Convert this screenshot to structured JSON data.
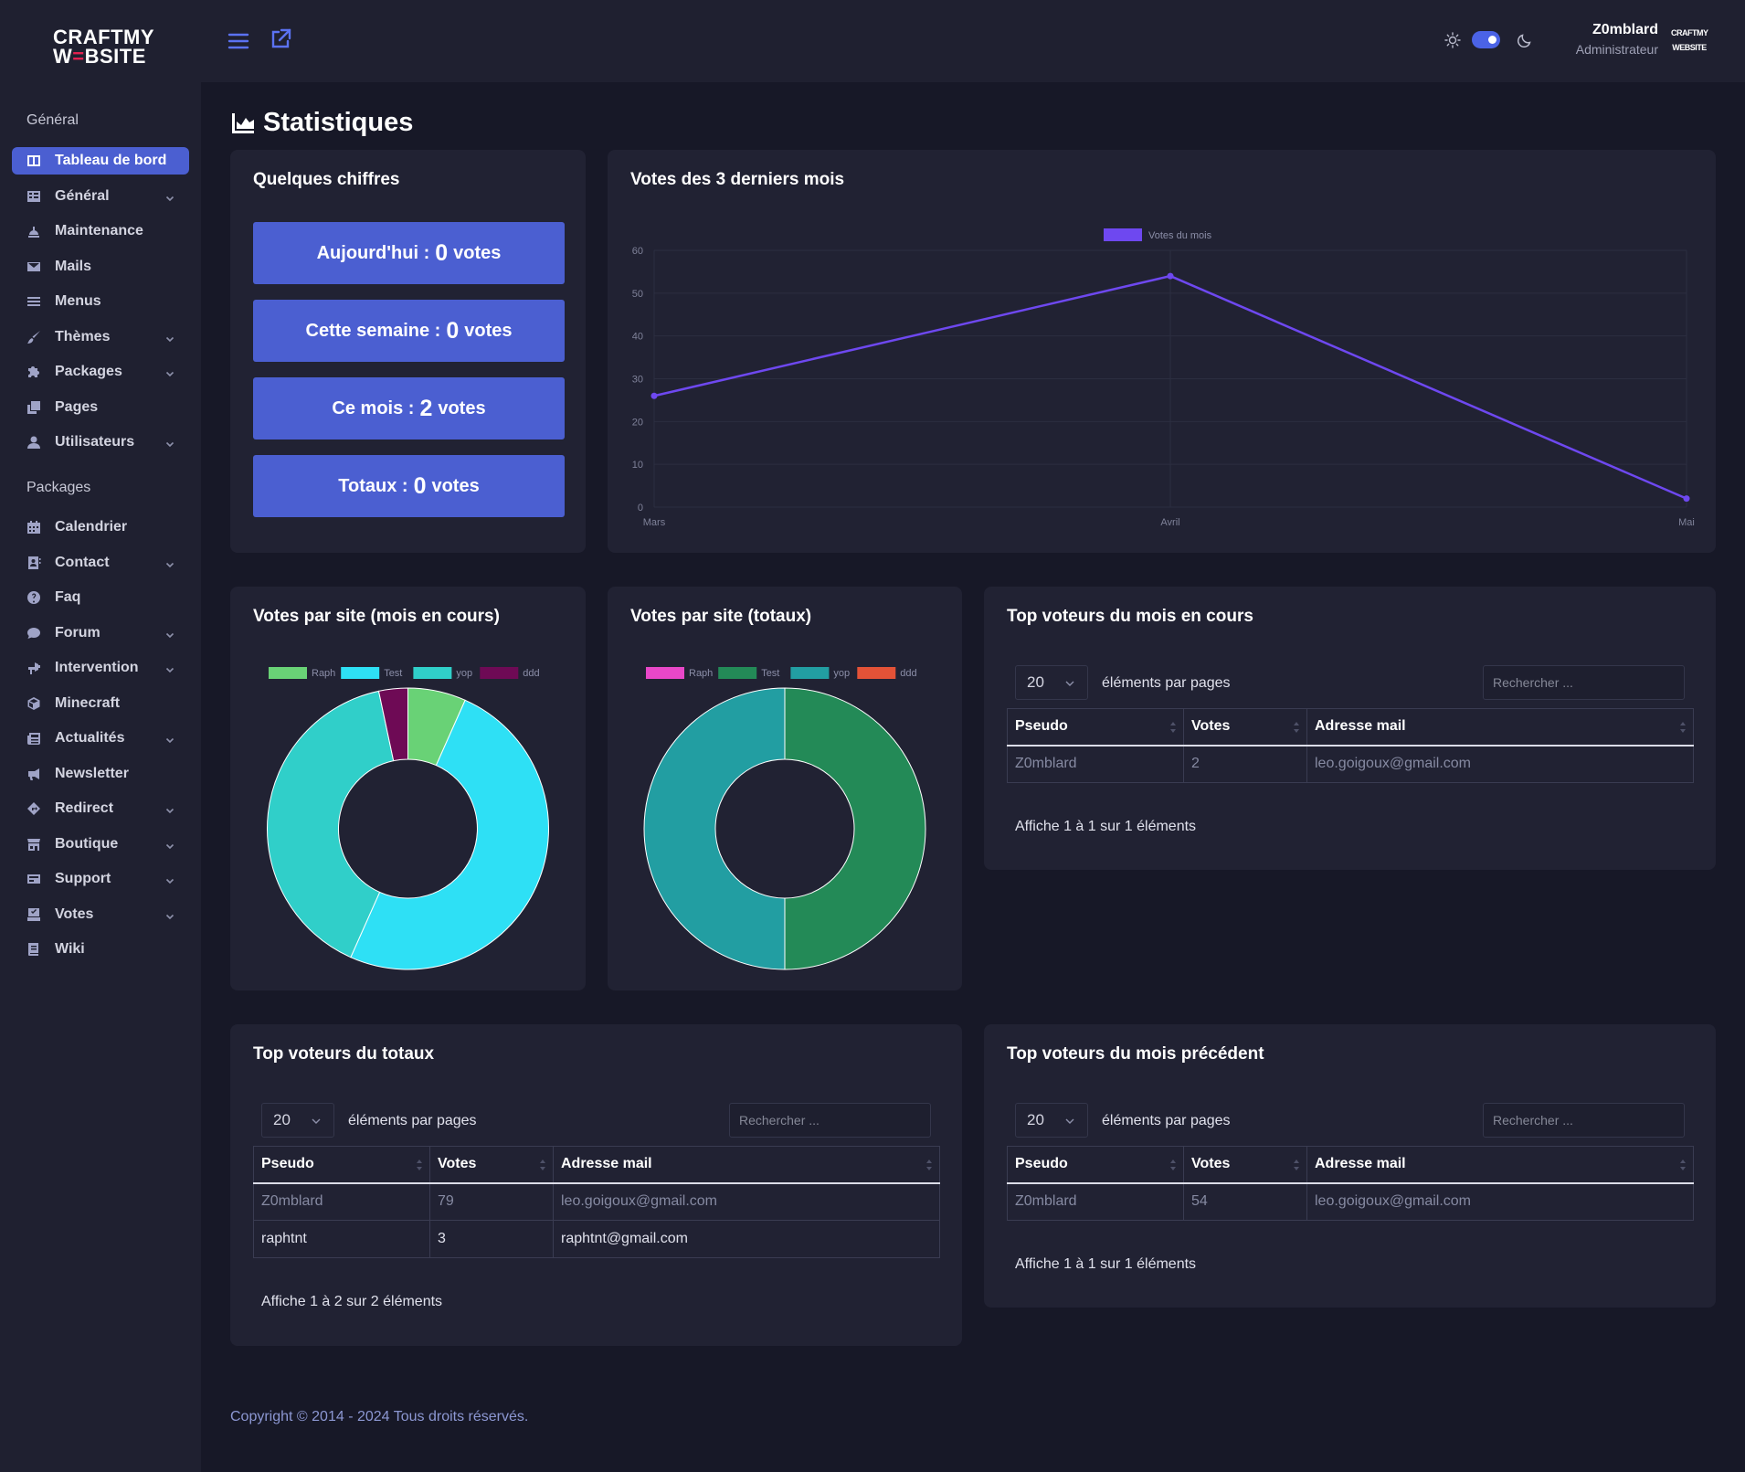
{
  "brand": {
    "logo_line1": "CRAFTMY",
    "logo_line2_a": "W",
    "logo_line2_b": "=",
    "logo_line2_c": "BSITE"
  },
  "sidebar": {
    "section_general": "Général",
    "section_packages": "Packages",
    "items": [
      {
        "label": "Tableau de bord",
        "icon": "dashboard-icon",
        "active": true,
        "chevron": false
      },
      {
        "label": "Général",
        "icon": "table-icon",
        "chevron": true
      },
      {
        "label": "Maintenance",
        "icon": "construction-icon",
        "chevron": false
      },
      {
        "label": "Mails",
        "icon": "mail-icon",
        "chevron": false
      },
      {
        "label": "Menus",
        "icon": "menu-icon",
        "chevron": false
      },
      {
        "label": "Thèmes",
        "icon": "brush-icon",
        "chevron": true
      },
      {
        "label": "Packages",
        "icon": "puzzle-icon",
        "chevron": true
      },
      {
        "label": "Pages",
        "icon": "pages-icon",
        "chevron": false
      },
      {
        "label": "Utilisateurs",
        "icon": "user-icon",
        "chevron": true
      }
    ],
    "package_items": [
      {
        "label": "Calendrier",
        "icon": "calendar-icon",
        "chevron": false
      },
      {
        "label": "Contact",
        "icon": "contact-icon",
        "chevron": true
      },
      {
        "label": "Faq",
        "icon": "question-icon",
        "chevron": false
      },
      {
        "label": "Forum",
        "icon": "comment-icon",
        "chevron": true
      },
      {
        "label": "Intervention",
        "icon": "tools-icon",
        "chevron": true
      },
      {
        "label": "Minecraft",
        "icon": "cube-icon",
        "chevron": false
      },
      {
        "label": "Actualités",
        "icon": "news-icon",
        "chevron": true
      },
      {
        "label": "Newsletter",
        "icon": "megaphone-icon",
        "chevron": false
      },
      {
        "label": "Redirect",
        "icon": "diamond-arrow-icon",
        "chevron": true
      },
      {
        "label": "Boutique",
        "icon": "shop-icon",
        "chevron": true
      },
      {
        "label": "Support",
        "icon": "support-icon",
        "chevron": true
      },
      {
        "label": "Votes",
        "icon": "ballot-icon",
        "chevron": true
      },
      {
        "label": "Wiki",
        "icon": "book-icon",
        "chevron": false
      }
    ]
  },
  "topbar": {
    "user_name": "Z0mblard",
    "user_role": "Administrateur",
    "avatar_text_1": "CRAFTMY",
    "avatar_text_2": "WEBSITE"
  },
  "page": {
    "title": "Statistiques"
  },
  "stats_card": {
    "title": "Quelques chiffres",
    "unit": "votes",
    "rows": [
      {
        "label": "Aujourd'hui :",
        "value": "0"
      },
      {
        "label": "Cette semaine :",
        "value": "0"
      },
      {
        "label": "Ce mois :",
        "value": "2"
      },
      {
        "label": "Totaux :",
        "value": "0"
      }
    ]
  },
  "line_card": {
    "title": "Votes des 3 derniers mois"
  },
  "donut_month_card": {
    "title": "Votes par site (mois en cours)"
  },
  "donut_total_card": {
    "title": "Votes par site (totaux)"
  },
  "chart_data": [
    {
      "type": "line",
      "title": "",
      "categories": [
        "Mars",
        "Avril",
        "Mai"
      ],
      "series": [
        {
          "name": "Votes du mois",
          "values": [
            26,
            54,
            2
          ],
          "color": "#6e48f0"
        }
      ],
      "ylim": [
        0,
        60
      ],
      "yticks": [
        0,
        10,
        20,
        30,
        40,
        50,
        60
      ],
      "grid": true,
      "legend": "top-center"
    },
    {
      "type": "pie",
      "donut": true,
      "categories": [
        "Raph",
        "Test",
        "yop",
        "ddd"
      ],
      "values": [
        2,
        15,
        12,
        1
      ],
      "colors": [
        "#69d276",
        "#2ee0f5",
        "#30cfc9",
        "#6e0a55"
      ],
      "legend": "top"
    },
    {
      "type": "pie",
      "donut": true,
      "categories": [
        "Raph",
        "Test",
        "yop",
        "ddd"
      ],
      "values": [
        0,
        1,
        1,
        0
      ],
      "colors": [
        "#e847c8",
        "#238a57",
        "#229ea2",
        "#e35237"
      ],
      "legend": "top"
    }
  ],
  "tables": {
    "common": {
      "length_value": "20",
      "length_label": "éléments par pages",
      "search_placeholder": "Rechercher ...",
      "col_pseudo": "Pseudo",
      "col_votes": "Votes",
      "col_mail": "Adresse mail"
    },
    "month": {
      "title": "Top voteurs du mois en cours",
      "rows": [
        {
          "pseudo": "Z0mblard",
          "votes": "2",
          "mail": "leo.goigoux@gmail.com"
        }
      ],
      "info": "Affiche 1 à 1 sur 1 éléments"
    },
    "total": {
      "title": "Top voteurs du totaux",
      "rows": [
        {
          "pseudo": "Z0mblard",
          "votes": "79",
          "mail": "leo.goigoux@gmail.com"
        },
        {
          "pseudo": "raphtnt",
          "votes": "3",
          "mail": "raphtnt@gmail.com"
        }
      ],
      "info": "Affiche 1 à 2 sur 2 éléments"
    },
    "previous": {
      "title": "Top voteurs du mois précédent",
      "rows": [
        {
          "pseudo": "Z0mblard",
          "votes": "54",
          "mail": "leo.goigoux@gmail.com"
        }
      ],
      "info": "Affiche 1 à 1 sur 1 éléments"
    }
  },
  "footer": {
    "text": "Copyright © 2014 - 2024 Tous droits réservés."
  }
}
